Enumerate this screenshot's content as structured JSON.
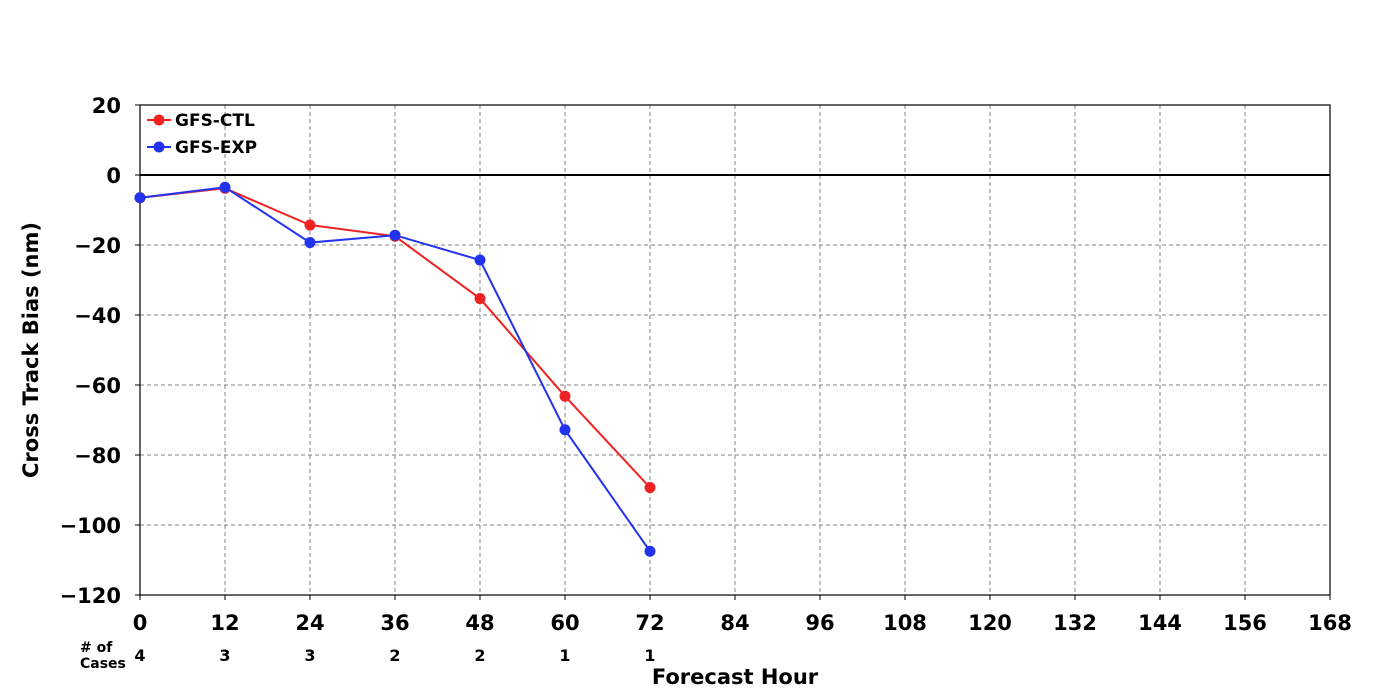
{
  "chart_data": {
    "type": "line",
    "xlabel": "Forecast Hour",
    "ylabel": "Cross Track Bias (nm)",
    "xlim": [
      0,
      168
    ],
    "ylim": [
      -120,
      20
    ],
    "xticks": [
      0,
      12,
      24,
      36,
      48,
      60,
      72,
      84,
      96,
      108,
      120,
      132,
      144,
      156,
      168
    ],
    "yticks": [
      20,
      0,
      -20,
      -40,
      -60,
      -80,
      -100,
      -120
    ],
    "ytick_labels": [
      "20",
      "0",
      "−20",
      "−40",
      "−60",
      "−80",
      "−100",
      "−120"
    ],
    "grid": true,
    "reference_line_y": 0,
    "legend_placement": "top-left",
    "series": [
      {
        "name": "GFS-CTL",
        "color": "#ee2222",
        "x": [
          0,
          12,
          24,
          36,
          48,
          60,
          72
        ],
        "y": [
          -6.5,
          -3.8,
          -14.3,
          -17.5,
          -35.3,
          -63.2,
          -89.3
        ]
      },
      {
        "name": "GFS-EXP",
        "color": "#2233ee",
        "x": [
          0,
          12,
          24,
          36,
          48,
          60,
          72
        ],
        "y": [
          -6.5,
          -3.5,
          -19.3,
          -17.2,
          -24.3,
          -72.8,
          -107.5
        ]
      }
    ],
    "cases": {
      "label_line1": "# of",
      "label_line2": "Cases",
      "x": [
        0,
        12,
        24,
        36,
        48,
        60,
        72
      ],
      "values": [
        "4",
        "3",
        "3",
        "2",
        "2",
        "1",
        "1"
      ]
    }
  }
}
